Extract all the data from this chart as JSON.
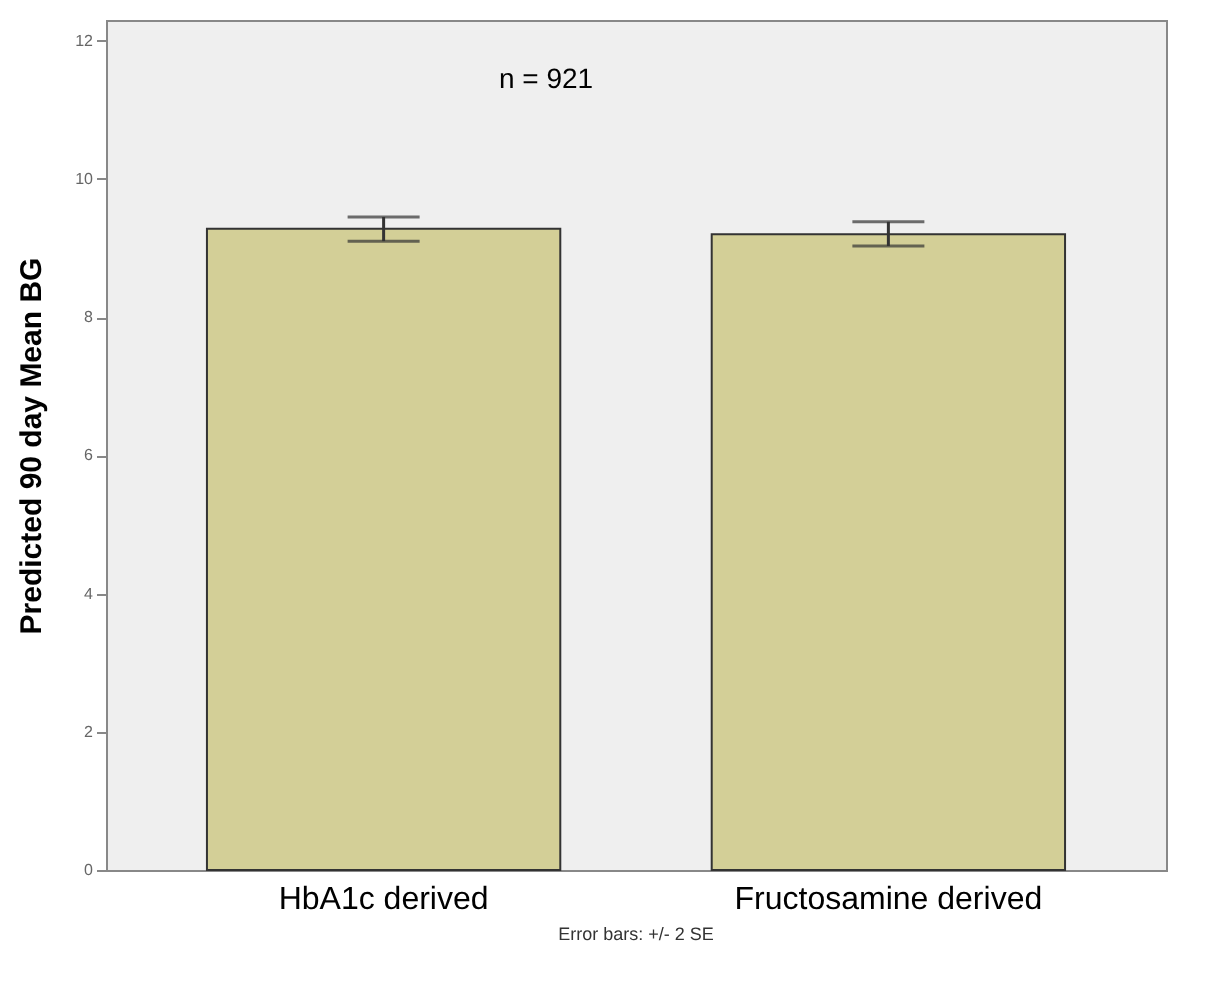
{
  "chart_data": {
    "type": "bar",
    "ylabel": "Predicted 90 day Mean BG",
    "categories": [
      "HbA1c derived",
      "Fructosamine derived"
    ],
    "values": [
      9.28,
      9.2
    ],
    "errors": [
      [
        9.1,
        9.45
      ],
      [
        9.03,
        9.38
      ]
    ],
    "color": "#d3cf97",
    "ylim": [
      0,
      12.3
    ],
    "yticks": [
      0,
      2,
      4,
      6,
      8,
      10,
      12
    ],
    "grid": false,
    "annotations": [
      "n = 921",
      "Error bars: +/- 2 SE"
    ]
  }
}
